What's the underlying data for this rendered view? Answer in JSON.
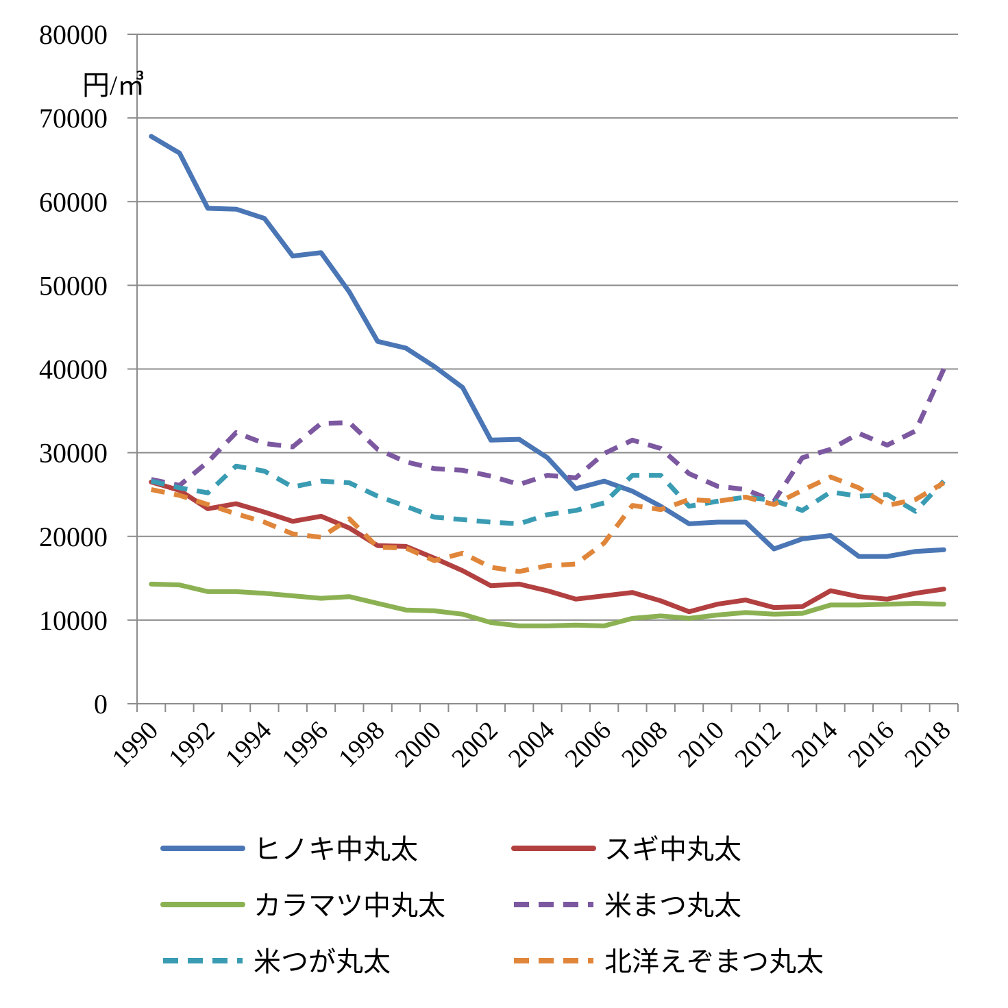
{
  "chart_data": {
    "type": "line",
    "ylabel": "円/㎥",
    "ylim": [
      0,
      80000
    ],
    "yticks": [
      0,
      10000,
      20000,
      30000,
      40000,
      50000,
      60000,
      70000,
      80000
    ],
    "ytick_labels": [
      "0",
      "10000",
      "20000",
      "30000",
      "40000",
      "50000",
      "60000",
      "70000",
      "80000"
    ],
    "xticks": [
      "1990",
      "1992",
      "1994",
      "1996",
      "1998",
      "2000",
      "2002",
      "2004",
      "2006",
      "2008",
      "2010",
      "2012",
      "2014",
      "2016",
      "2018"
    ],
    "x": [
      1990,
      1991,
      1992,
      1993,
      1994,
      1995,
      1996,
      1997,
      1998,
      1999,
      2000,
      2001,
      2002,
      2003,
      2004,
      2005,
      2006,
      2007,
      2008,
      2009,
      2010,
      2011,
      2012,
      2013,
      2014,
      2015,
      2016,
      2017,
      2018
    ],
    "grid": true,
    "legend_position": "bottom",
    "series": [
      {
        "name": "ヒノキ中丸太",
        "color": "#4a76b5",
        "style": "solid",
        "values": [
          67800,
          65800,
          59200,
          59100,
          58000,
          53500,
          53900,
          49200,
          43300,
          42500,
          40300,
          37800,
          31500,
          31600,
          29400,
          25700,
          26600,
          25400,
          23600,
          21500,
          21700,
          21700,
          18500,
          19700,
          20100,
          17600,
          17600,
          18200,
          18400
        ]
      },
      {
        "name": "スギ中丸太",
        "color": "#b34040",
        "style": "solid",
        "values": [
          26500,
          25500,
          23300,
          23900,
          22900,
          21800,
          22400,
          21000,
          18900,
          18800,
          17400,
          15900,
          14100,
          14300,
          13500,
          12500,
          12900,
          13300,
          12300,
          11000,
          11900,
          12400,
          11500,
          11600,
          13500,
          12800,
          12500,
          13200,
          13700
        ]
      },
      {
        "name": "カラマツ中丸太",
        "color": "#8bb153",
        "style": "solid",
        "values": [
          14300,
          14200,
          13400,
          13400,
          13200,
          12900,
          12600,
          12800,
          12000,
          11200,
          11100,
          10700,
          9700,
          9300,
          9300,
          9400,
          9300,
          10200,
          10500,
          10200,
          10600,
          10900,
          10700,
          10800,
          11800,
          11800,
          11900,
          12000,
          11900
        ]
      },
      {
        "name": "米まつ丸太",
        "color": "#7c58a0",
        "style": "dashed",
        "values": [
          26800,
          26100,
          28900,
          32400,
          31100,
          30700,
          33500,
          33600,
          30400,
          28900,
          28100,
          27900,
          27200,
          26200,
          27300,
          27000,
          29900,
          31500,
          30500,
          27500,
          26000,
          25600,
          24200,
          29400,
          30400,
          32300,
          30900,
          32600,
          40000
        ]
      },
      {
        "name": "米つが丸太",
        "color": "#3a9cb3",
        "style": "dashed",
        "values": [
          26600,
          25800,
          25200,
          28400,
          27800,
          25900,
          26600,
          26400,
          24800,
          23600,
          22300,
          22000,
          21700,
          21500,
          22600,
          23100,
          24000,
          27300,
          27300,
          23600,
          24200,
          24700,
          24300,
          23100,
          25300,
          24800,
          25000,
          23000,
          26600
        ]
      },
      {
        "name": "北洋えぞまつ丸太",
        "color": "#e0863a",
        "style": "dashed",
        "values": [
          25600,
          24900,
          23800,
          22700,
          21700,
          20300,
          19900,
          22100,
          18700,
          18600,
          17100,
          18000,
          16300,
          15800,
          16500,
          16700,
          19200,
          23700,
          23200,
          24400,
          24200,
          24700,
          23800,
          25500,
          27100,
          25800,
          23700,
          24400,
          26400
        ]
      }
    ]
  }
}
